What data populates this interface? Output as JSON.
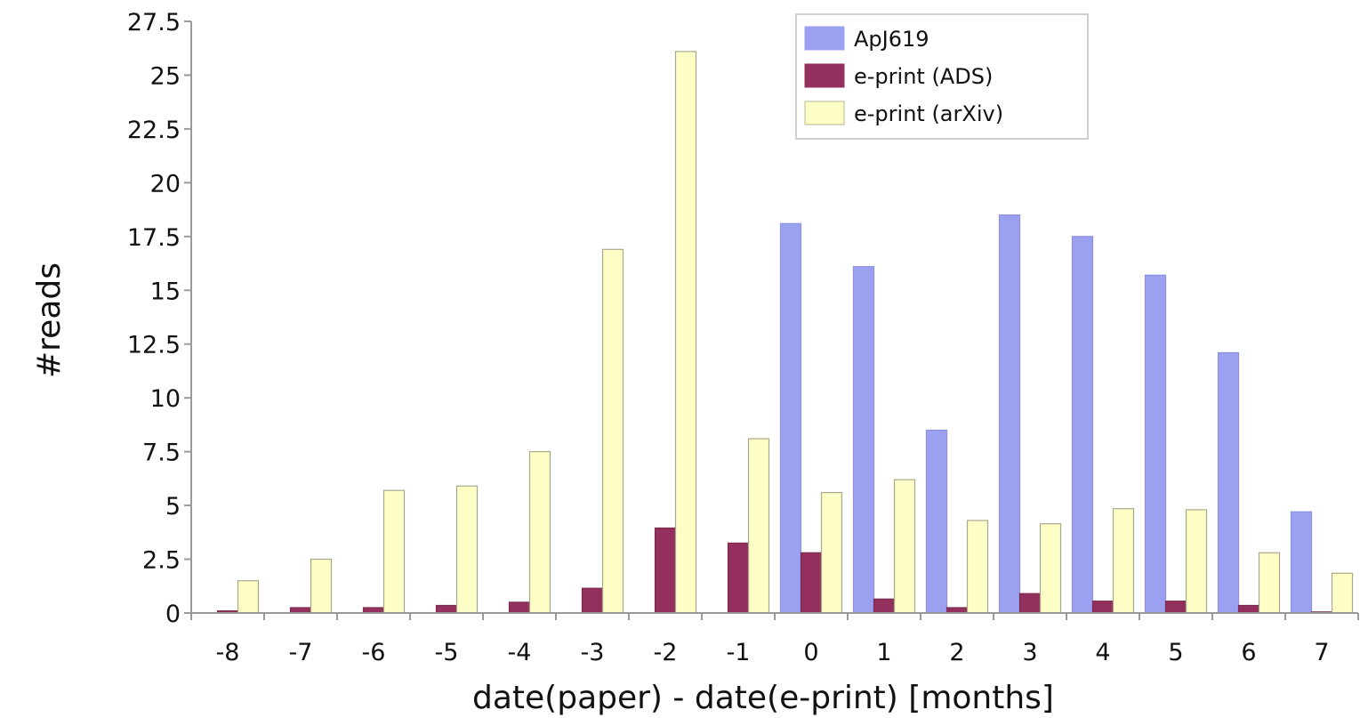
{
  "chart_data": {
    "type": "bar",
    "categories": [
      "-8",
      "-7",
      "-6",
      "-5",
      "-4",
      "-3",
      "-2",
      "-1",
      "0",
      "1",
      "2",
      "3",
      "4",
      "5",
      "6",
      "7"
    ],
    "series": [
      {
        "name": "ApJ619",
        "color": "#9ba0f0",
        "values": [
          0,
          0,
          0,
          0,
          0,
          0,
          0,
          0,
          18.1,
          16.1,
          8.5,
          18.5,
          17.5,
          15.7,
          12.1,
          4.7
        ]
      },
      {
        "name": "e-print (ADS)",
        "color": "#93305d",
        "values": [
          0.1,
          0.25,
          0.25,
          0.35,
          0.5,
          1.15,
          3.95,
          3.25,
          2.8,
          0.65,
          0.25,
          0.9,
          0.55,
          0.55,
          0.35,
          0.05
        ]
      },
      {
        "name": "e-print (arXiv)",
        "color": "#fdfdc6",
        "values": [
          1.5,
          2.5,
          5.7,
          5.9,
          7.5,
          16.9,
          26.1,
          8.1,
          5.6,
          6.2,
          4.3,
          4.15,
          4.85,
          4.8,
          2.8,
          1.85
        ]
      }
    ],
    "y_ticks": [
      "0",
      "2.5",
      "5",
      "7.5",
      "10",
      "12.5",
      "15",
      "17.5",
      "20",
      "22.5",
      "25",
      "27.5"
    ],
    "ylim": [
      0,
      27.5
    ],
    "xlabel": "date(paper) - date(e-print) [months]",
    "ylabel": "#reads",
    "title": "",
    "grid": false,
    "legend": "top-right"
  }
}
